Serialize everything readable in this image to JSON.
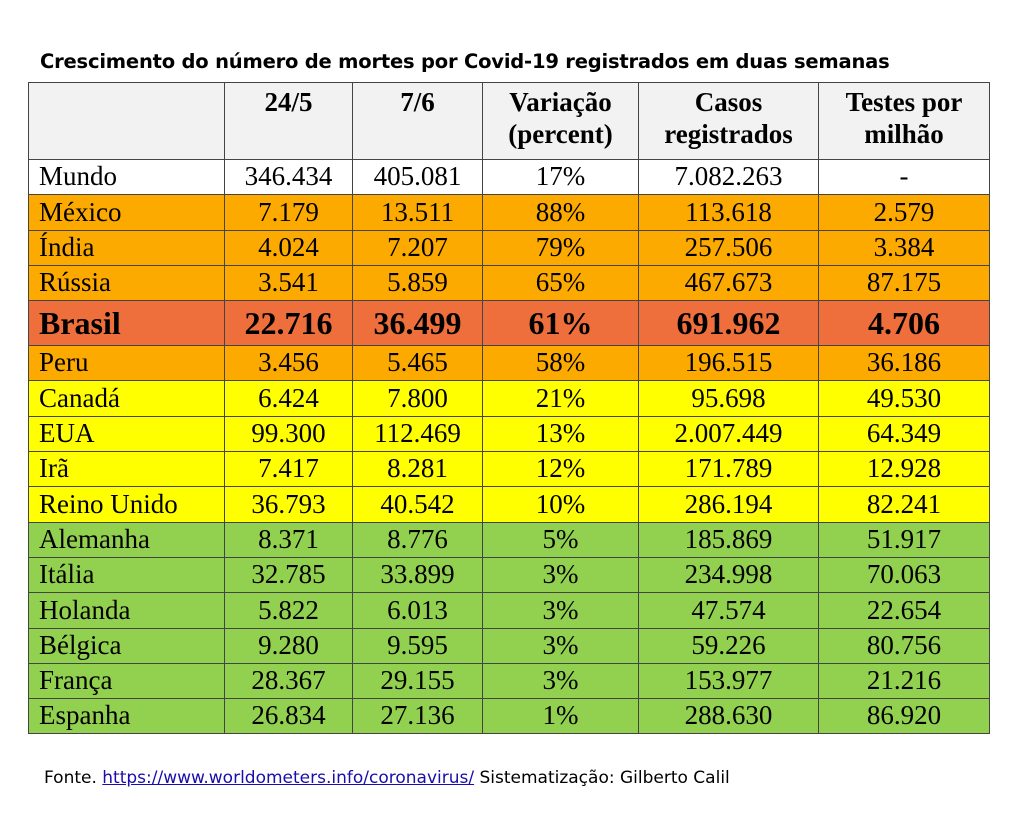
{
  "chart_data": {
    "type": "table",
    "title": "Crescimento do número de mortes por Covid-19 registrados em duas semanas",
    "columns": [
      "",
      "24/5",
      "7/6",
      "Variação (percent)",
      "Casos registrados",
      "Testes por milhão"
    ],
    "rows": [
      {
        "country": "Mundo",
        "d245": "346.434",
        "d76": "405.081",
        "var": "17%",
        "casos": "7.082.263",
        "testes": "-",
        "color": "#ffffff",
        "bold": false
      },
      {
        "country": "México",
        "d245": "7.179",
        "d76": "13.511",
        "var": "88%",
        "casos": "113.618",
        "testes": "2.579",
        "color": "#fdaa00",
        "bold": false
      },
      {
        "country": "Índia",
        "d245": "4.024",
        "d76": "7.207",
        "var": "79%",
        "casos": "257.506",
        "testes": "3.384",
        "color": "#fdaa00",
        "bold": false
      },
      {
        "country": "Rússia",
        "d245": "3.541",
        "d76": "5.859",
        "var": "65%",
        "casos": "467.673",
        "testes": "87.175",
        "color": "#fdaa00",
        "bold": false
      },
      {
        "country": "Brasil",
        "d245": "22.716",
        "d76": "36.499",
        "var": "61%",
        "casos": "691.962",
        "testes": "4.706",
        "color": "#ef6f3c",
        "bold": true
      },
      {
        "country": "Peru",
        "d245": "3.456",
        "d76": "5.465",
        "var": "58%",
        "casos": "196.515",
        "testes": "36.186",
        "color": "#fdaa00",
        "bold": false
      },
      {
        "country": "Canadá",
        "d245": "6.424",
        "d76": "7.800",
        "var": "21%",
        "casos": "95.698",
        "testes": "49.530",
        "color": "#ffff00",
        "bold": false
      },
      {
        "country": "EUA",
        "d245": "99.300",
        "d76": "112.469",
        "var": "13%",
        "casos": "2.007.449",
        "testes": "64.349",
        "color": "#ffff00",
        "bold": false
      },
      {
        "country": "Irã",
        "d245": "7.417",
        "d76": "8.281",
        "var": "12%",
        "casos": "171.789",
        "testes": "12.928",
        "color": "#ffff00",
        "bold": false
      },
      {
        "country": "Reino Unido",
        "d245": "36.793",
        "d76": "40.542",
        "var": "10%",
        "casos": "286.194",
        "testes": "82.241",
        "color": "#ffff00",
        "bold": false
      },
      {
        "country": "Alemanha",
        "d245": "8.371",
        "d76": "8.776",
        "var": "5%",
        "casos": "185.869",
        "testes": "51.917",
        "color": "#92d050",
        "bold": false
      },
      {
        "country": "Itália",
        "d245": "32.785",
        "d76": "33.899",
        "var": "3%",
        "casos": "234.998",
        "testes": "70.063",
        "color": "#92d050",
        "bold": false
      },
      {
        "country": "Holanda",
        "d245": "5.822",
        "d76": "6.013",
        "var": "3%",
        "casos": "47.574",
        "testes": "22.654",
        "color": "#92d050",
        "bold": false
      },
      {
        "country": "Bélgica",
        "d245": "9.280",
        "d76": "9.595",
        "var": "3%",
        "casos": "59.226",
        "testes": "80.756",
        "color": "#92d050",
        "bold": false
      },
      {
        "country": "França",
        "d245": "28.367",
        "d76": "29.155",
        "var": "3%",
        "casos": "153.977",
        "testes": "21.216",
        "color": "#92d050",
        "bold": false
      },
      {
        "country": "Espanha",
        "d245": "26.834",
        "d76": "27.136",
        "var": "1%",
        "casos": "288.630",
        "testes": "86.920",
        "color": "#92d050",
        "bold": false
      }
    ]
  },
  "footer": {
    "prefix": "Fonte. ",
    "link": "https://www.worldometers.info/coronavirus/",
    "suffix": " Sistematização: Gilberto Calil"
  }
}
